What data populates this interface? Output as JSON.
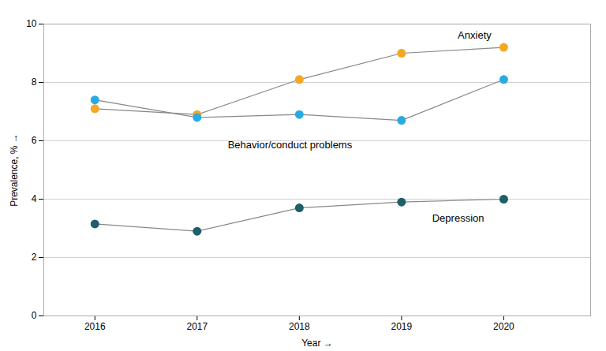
{
  "chart_data": {
    "type": "line",
    "x": [
      2016,
      2017,
      2018,
      2019,
      2020
    ],
    "series": [
      {
        "name": "Anxiety",
        "color": "#F5A623",
        "values": [
          7.1,
          6.9,
          8.1,
          9.0,
          9.2
        ]
      },
      {
        "name": "Behavior/conduct problems",
        "color": "#29ABE2",
        "values": [
          7.4,
          6.8,
          6.9,
          6.7,
          8.1
        ]
      },
      {
        "name": "Depression",
        "color": "#1D5F6A",
        "values": [
          3.15,
          2.9,
          3.7,
          3.9,
          4.0
        ]
      }
    ],
    "color": "#888888",
    "marker": "circle",
    "xlabel": "Year",
    "ylabel": "Prevalence, %",
    "xlim": [
      2015.5,
      2020.85
    ],
    "xticks": [
      2016,
      2017,
      2018,
      2019,
      2020
    ],
    "ylim": [
      0,
      10
    ],
    "yticks": [
      0,
      2,
      4,
      6,
      8,
      10
    ],
    "grid": true
  }
}
